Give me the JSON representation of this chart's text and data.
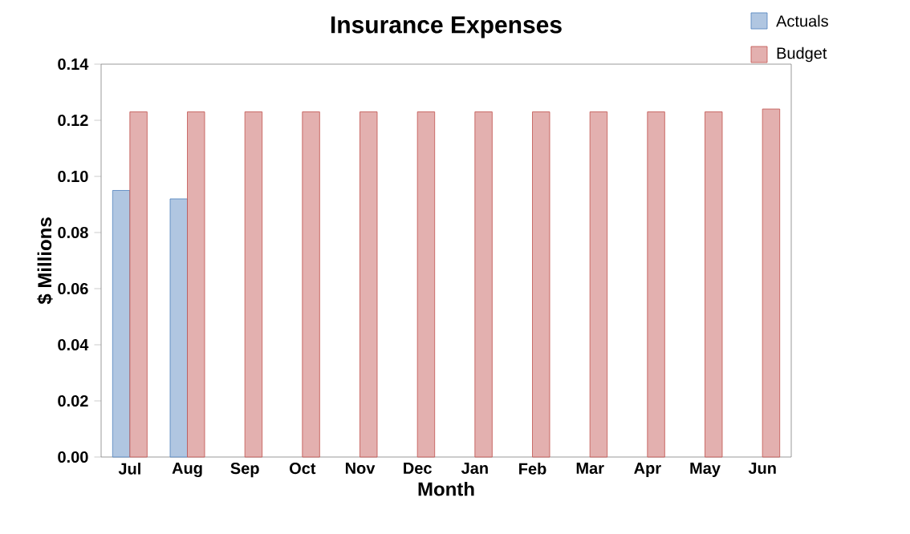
{
  "chart_data": {
    "type": "bar",
    "title": "Insurance Expenses",
    "xlabel": "Month",
    "ylabel": "$ Millions",
    "categories": [
      "Jul",
      "Aug",
      "Sep",
      "Oct",
      "Nov",
      "Dec",
      "Jan",
      "Feb",
      "Mar",
      "Apr",
      "May",
      "Jun"
    ],
    "series": [
      {
        "name": "Actuals",
        "color": "#4f81bd",
        "values": [
          0.095,
          0.092,
          null,
          null,
          null,
          null,
          null,
          null,
          null,
          null,
          null,
          null
        ]
      },
      {
        "name": "Budget",
        "color": "#c0504d",
        "values": [
          0.123,
          0.123,
          0.123,
          0.123,
          0.123,
          0.123,
          0.123,
          0.123,
          0.123,
          0.123,
          0.123,
          0.124
        ]
      }
    ],
    "ylim": [
      0,
      0.14
    ],
    "yticks": [
      {
        "value": 0,
        "label": "0.00"
      },
      {
        "value": 0.02,
        "label": "0.02"
      },
      {
        "value": 0.04,
        "label": "0.04"
      },
      {
        "value": 0.06,
        "label": "0.06"
      },
      {
        "value": 0.08,
        "label": "0.08"
      },
      {
        "value": 0.1,
        "label": "0.10"
      },
      {
        "value": 0.12,
        "label": "0.12"
      },
      {
        "value": 0.14,
        "label": "0.14"
      }
    ],
    "legend": "top right"
  }
}
